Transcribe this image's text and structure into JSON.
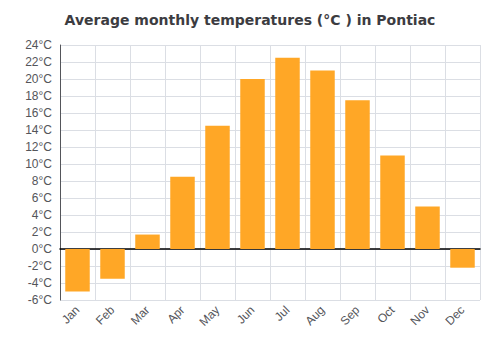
{
  "chart_data": {
    "type": "bar",
    "title": "Average monthly temperatures (°C ) in Pontiac",
    "categories": [
      "Jan",
      "Feb",
      "Mar",
      "Apr",
      "May",
      "Jun",
      "Jul",
      "Aug",
      "Sep",
      "Oct",
      "Nov",
      "Dec"
    ],
    "values": [
      -5.0,
      -3.5,
      1.7,
      8.5,
      14.5,
      20.0,
      22.5,
      21.0,
      17.5,
      11.0,
      5.0,
      -2.2
    ],
    "color": "#FFA726",
    "ylim": [
      -6,
      24
    ],
    "yticks": [
      {
        "value": -6,
        "label": "-6°C"
      },
      {
        "value": -4,
        "label": "-4°C"
      },
      {
        "value": -2,
        "label": "-2°C"
      },
      {
        "value": 0,
        "label": "0°C"
      },
      {
        "value": 2,
        "label": "2°C"
      },
      {
        "value": 4,
        "label": "4°C"
      },
      {
        "value": 6,
        "label": "6°C"
      },
      {
        "value": 8,
        "label": "8°C"
      },
      {
        "value": 10,
        "label": "10°C"
      },
      {
        "value": 12,
        "label": "12°C"
      },
      {
        "value": 14,
        "label": "14°C"
      },
      {
        "value": 16,
        "label": "16°C"
      },
      {
        "value": 18,
        "label": "18°C"
      },
      {
        "value": 20,
        "label": "20°C"
      },
      {
        "value": 22,
        "label": "22°C"
      },
      {
        "value": 24,
        "label": "24°C"
      }
    ],
    "grid": true
  }
}
